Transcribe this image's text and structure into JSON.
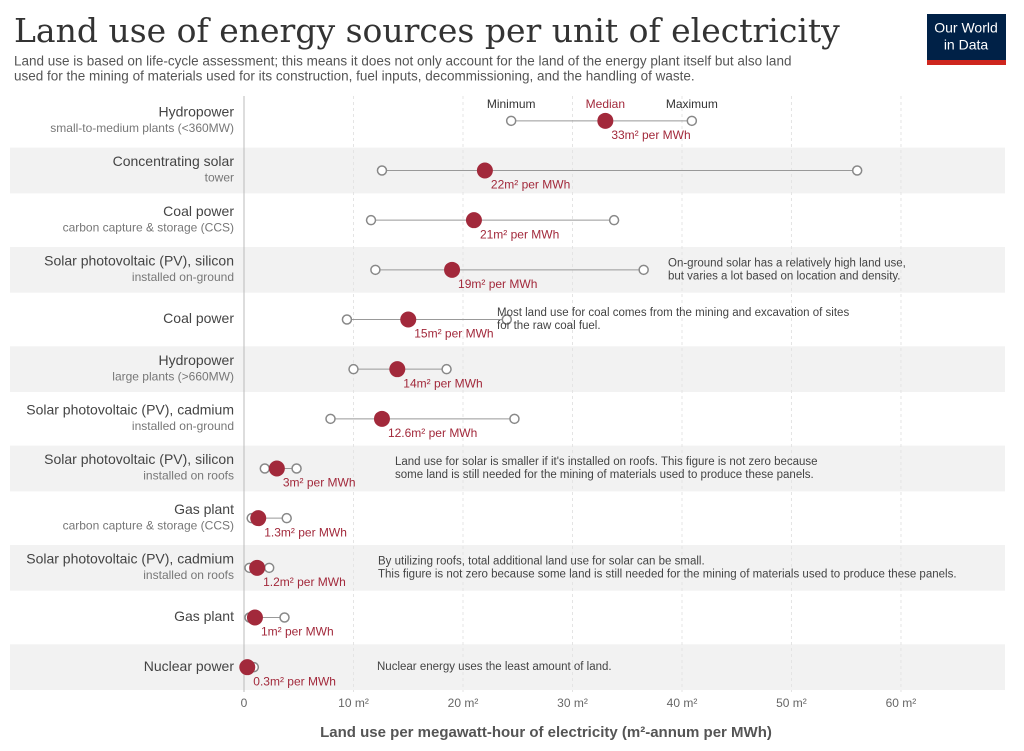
{
  "chart_data": {
    "type": "dotrange",
    "title": "Land use of energy sources per unit of electricity",
    "subtitle": [
      "Land use is based on life-cycle assessment; this means it does not only account for the land of the energy plant itself but also land",
      "used for the mining of materials used for its construction, fuel inputs, decommissioning, and the handling of waste."
    ],
    "logo": [
      "Our World",
      "in Data"
    ],
    "x_label": "Land use per megawatt-hour of electricity (m²-annum per MWh)",
    "categories": [
      "Hydropower",
      "Concentrating solar",
      "Coal power",
      "Solar photovoltaic (PV), silicon",
      "Coal power",
      "Hydropower",
      "Solar photovoltaic (PV), cadmium",
      "Solar photovoltaic (PV), silicon",
      "Gas plant",
      "Solar photovoltaic (PV), cadmium",
      "Gas plant",
      "Nuclear power"
    ],
    "category_details": [
      "small-to-medium plants (<360MW)",
      "tower",
      "carbon capture & storage (CCS)",
      "installed on-ground",
      null,
      "large plants (>660MW)",
      "installed on-ground",
      "installed on roofs",
      "carbon capture & storage (CCS)",
      "installed on roofs",
      null,
      null
    ],
    "series": [
      {
        "name": "Minimum",
        "color": "#888888",
        "values": [
          24.4,
          12.6,
          11.6,
          12,
          9.4,
          10,
          7.9,
          1.9,
          0.7,
          0.5,
          0.5,
          0.1
        ]
      },
      {
        "name": "Median",
        "color": "#a2293b",
        "values": [
          33,
          22,
          21,
          19,
          15,
          14,
          12.6,
          3,
          1.3,
          1.2,
          1,
          0.3
        ],
        "value_labels": [
          "33m² per MWh",
          "22m² per MWh",
          "21m² per MWh",
          "19m² per MWh",
          "15m² per MWh",
          "14m² per MWh",
          "12.6m² per MWh",
          "3m² per MWh",
          "1.3m² per MWh",
          "1.2m² per MWh",
          "1m² per MWh",
          "0.3m² per MWh"
        ]
      },
      {
        "name": "Maximum",
        "color": "#888888",
        "values": [
          40.9,
          56,
          33.8,
          36.5,
          24,
          18.5,
          24.7,
          4.8,
          3.9,
          2.3,
          3.7,
          0.9
        ]
      }
    ],
    "annotations": [
      {
        "row": 3,
        "lines": [
          "On-ground solar has a relatively high land use,",
          "but varies a lot based on location and density."
        ]
      },
      {
        "row": 4,
        "lines": [
          "Most land use for coal comes from the mining and excavation of sites",
          "for the raw coal fuel."
        ]
      },
      {
        "row": 7,
        "lines": [
          "Land use for solar is smaller if it's installed on roofs. This figure is not zero because",
          "some land is still needed for the mining of materials used to produce these panels."
        ]
      },
      {
        "row": 9,
        "lines": [
          "By utilizing roofs, total additional land use for solar can be small.",
          "This figure is not zero because some land is still needed for the mining of materials used to produce these panels."
        ]
      },
      {
        "row": 11,
        "lines": [
          "Nuclear energy uses the least amount of land."
        ]
      }
    ],
    "xlim": [
      0,
      69.5
    ],
    "xticks": [
      0,
      {
        "value": 10,
        "label": "10 m²"
      },
      {
        "value": 20,
        "label": "20 m²"
      },
      {
        "value": 30,
        "label": "30 m²"
      },
      {
        "value": 40,
        "label": "40 m²"
      },
      {
        "value": 50,
        "label": "50 m²"
      },
      {
        "value": 60,
        "label": "60 m²"
      }
    ],
    "grid": true
  }
}
